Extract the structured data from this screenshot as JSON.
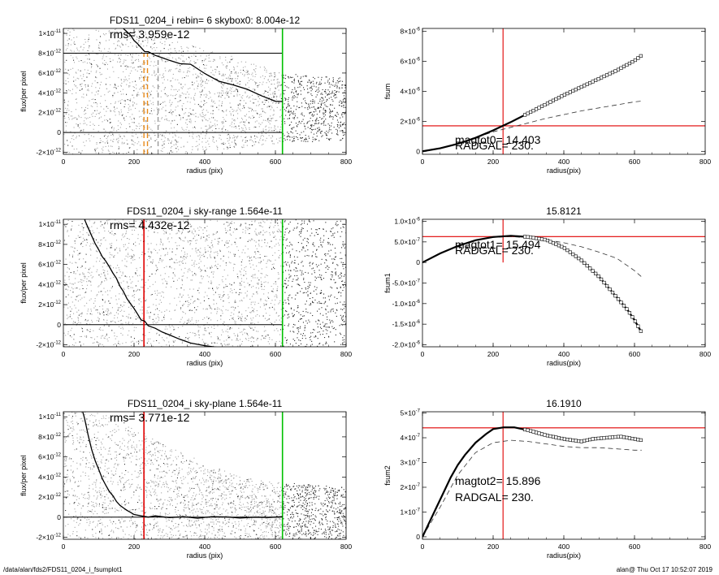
{
  "footer": {
    "path": "/data/alan/fds2/FDS11_0204_i_fsumplot1",
    "stamp": "alan@  Thu Oct 17 10:52:07 2019"
  },
  "colors": {
    "grey_points": "#9a9a9a",
    "red_line": "#e00000",
    "green_line": "#00c000",
    "orange_dash": "#e88a1a",
    "black": "#000000"
  },
  "chart_data": [
    {
      "id": "left-top",
      "type": "scatter",
      "title": "FDS11_0204_i rebin= 6    skybox0:  8.004e-12",
      "annotation": "rms= 3.959e-12",
      "xlabel": "radius (pix)",
      "ylabel": "flux/per pixel",
      "xlim": [
        0,
        800
      ],
      "ylim": [
        -2.2e-12,
        1.05e-11
      ],
      "xticks": [
        {
          "v": 0,
          "t": "0"
        },
        {
          "v": 200,
          "t": "200"
        },
        {
          "v": 400,
          "t": "400"
        },
        {
          "v": 600,
          "t": "600"
        },
        {
          "v": 800,
          "t": "800"
        }
      ],
      "yticks": [
        {
          "v": -2e-12,
          "t": "-2×10",
          "e": "-12"
        },
        {
          "v": 0,
          "t": "0"
        },
        {
          "v": 2e-12,
          "t": "2×10",
          "e": "-12"
        },
        {
          "v": 4e-12,
          "t": "4×10",
          "e": "-12"
        },
        {
          "v": 6e-12,
          "t": "6×10",
          "e": "-12"
        },
        {
          "v": 8e-12,
          "t": "8×10",
          "e": "-12"
        },
        {
          "v": 1e-11,
          "t": "1×10",
          "e": "-11"
        }
      ],
      "hlines": [
        {
          "y": 8.004e-12,
          "color": "black"
        },
        {
          "y": 0,
          "color": "black"
        }
      ],
      "vlines": [
        {
          "x": 620,
          "color": "green"
        }
      ],
      "vdash": [
        {
          "x": 228,
          "color": "orange",
          "y0": -2.2e-12,
          "y1": 8e-12
        },
        {
          "x": 238,
          "color": "orange",
          "y0": -2.2e-12,
          "y1": 8e-12
        },
        {
          "x": 268,
          "color": "grey",
          "y0": -2.2e-12,
          "y1": 7.8e-12
        }
      ],
      "profile": {
        "x": [
          170,
          190,
          200,
          210,
          220,
          230,
          240,
          260,
          280,
          300,
          330,
          360,
          400,
          440,
          480,
          520,
          560,
          600,
          620
        ],
        "y": [
          1.05e-11,
          9.8e-12,
          9.3e-12,
          8.9e-12,
          8.5e-12,
          8.2e-12,
          8.1e-12,
          7.8e-12,
          7.5e-12,
          7.3e-12,
          6.9e-12,
          6.9e-12,
          6e-12,
          5.2e-12,
          4.8e-12,
          4.3e-12,
          3.7e-12,
          3.1e-12,
          3.1e-12
        ]
      },
      "cloud": {
        "mode": "band",
        "top": [
          [
            0,
            1.2e-11
          ],
          [
            200,
            1.05e-11
          ],
          [
            300,
            9.5e-12
          ],
          [
            400,
            8.5e-12
          ],
          [
            500,
            7.5e-12
          ],
          [
            620,
            6e-12
          ],
          [
            800,
            5.5e-12
          ]
        ],
        "bottom": [
          [
            0,
            -2.2e-12
          ],
          [
            300,
            -2.2e-12
          ],
          [
            500,
            -1.5e-12
          ],
          [
            620,
            -1e-12
          ],
          [
            800,
            -8e-13
          ]
        ]
      }
    },
    {
      "id": "left-mid",
      "type": "scatter",
      "title": "FDS11_0204_i sky-range  1.564e-11",
      "annotation": "rms= 4.432e-12",
      "xlabel": "radius (pix)",
      "ylabel": "flux/per pixel",
      "xlim": [
        0,
        800
      ],
      "ylim": [
        -2.2e-12,
        1.05e-11
      ],
      "xticks": [
        {
          "v": 0,
          "t": "0"
        },
        {
          "v": 200,
          "t": "200"
        },
        {
          "v": 400,
          "t": "400"
        },
        {
          "v": 600,
          "t": "600"
        },
        {
          "v": 800,
          "t": "800"
        }
      ],
      "yticks": [
        {
          "v": -2e-12,
          "t": "-2×10",
          "e": "-12"
        },
        {
          "v": 0,
          "t": "0"
        },
        {
          "v": 2e-12,
          "t": "2×10",
          "e": "-12"
        },
        {
          "v": 4e-12,
          "t": "4×10",
          "e": "-12"
        },
        {
          "v": 6e-12,
          "t": "6×10",
          "e": "-12"
        },
        {
          "v": 8e-12,
          "t": "8×10",
          "e": "-12"
        },
        {
          "v": 1e-11,
          "t": "1×10",
          "e": "-11"
        }
      ],
      "hlines": [
        {
          "y": 0,
          "color": "black"
        }
      ],
      "vlines": [
        {
          "x": 228,
          "color": "red"
        },
        {
          "x": 620,
          "color": "green"
        }
      ],
      "vdash": [],
      "profile": {
        "x": [
          60,
          70,
          80,
          90,
          100,
          110,
          120,
          130,
          140,
          150,
          160,
          170,
          180,
          190,
          200,
          210,
          220,
          230,
          240,
          260,
          280,
          300,
          330,
          360,
          400,
          440
        ],
        "y": [
          1.05e-11,
          9.6e-12,
          8.9e-12,
          8.1e-12,
          7.5e-12,
          6.8e-12,
          6.3e-12,
          5.8e-12,
          5.1e-12,
          4.6e-12,
          3.9e-12,
          3.3e-12,
          2.6e-12,
          2.1e-12,
          1.6e-12,
          1e-12,
          5e-13,
          3e-13,
          -1e-13,
          -4e-13,
          -7e-13,
          -1e-12,
          -1.4e-12,
          -1.8e-12,
          -2.1e-12,
          -2.3e-12
        ]
      },
      "cloud": {
        "mode": "full"
      }
    },
    {
      "id": "left-bot",
      "type": "scatter",
      "title": "FDS11_0204_i sky-plane  1.564e-11",
      "annotation": "rms= 3.771e-12",
      "xlabel": "radius (pix)",
      "ylabel": "flux/per pixel",
      "xlim": [
        0,
        800
      ],
      "ylim": [
        -2.2e-12,
        1.05e-11
      ],
      "xticks": [
        {
          "v": 0,
          "t": "0"
        },
        {
          "v": 200,
          "t": "200"
        },
        {
          "v": 400,
          "t": "400"
        },
        {
          "v": 600,
          "t": "600"
        },
        {
          "v": 800,
          "t": "800"
        }
      ],
      "yticks": [
        {
          "v": -2e-12,
          "t": "-2×10",
          "e": "-12"
        },
        {
          "v": 0,
          "t": "0"
        },
        {
          "v": 2e-12,
          "t": "2×10",
          "e": "-12"
        },
        {
          "v": 4e-12,
          "t": "4×10",
          "e": "-12"
        },
        {
          "v": 6e-12,
          "t": "6×10",
          "e": "-12"
        },
        {
          "v": 8e-12,
          "t": "8×10",
          "e": "-12"
        },
        {
          "v": 1e-11,
          "t": "1×10",
          "e": "-11"
        }
      ],
      "hlines": [
        {
          "y": 0,
          "color": "black"
        }
      ],
      "vlines": [
        {
          "x": 228,
          "color": "red"
        },
        {
          "x": 620,
          "color": "green"
        }
      ],
      "vdash": [],
      "profile": {
        "x": [
          55,
          60,
          70,
          80,
          90,
          100,
          110,
          120,
          130,
          140,
          150,
          160,
          170,
          180,
          190,
          200,
          220,
          240,
          260,
          300,
          340,
          380,
          420,
          460,
          500,
          540,
          580,
          620
        ],
        "y": [
          1.05e-11,
          9.8e-12,
          8.2e-12,
          6.8e-12,
          5.6e-12,
          4.7e-12,
          3.9e-12,
          3.2e-12,
          2.6e-12,
          2.1e-12,
          1.6e-12,
          1.2e-12,
          9e-13,
          7e-13,
          5e-13,
          3e-13,
          1.5e-13,
          5e-14,
          1e-13,
          -5e-14,
          0,
          -5e-14,
          5e-14,
          0,
          -5e-14,
          0,
          -5e-14,
          0
        ]
      },
      "cloud": {
        "mode": "band",
        "top": [
          [
            0,
            1.2e-11
          ],
          [
            200,
            9e-12
          ],
          [
            300,
            7e-12
          ],
          [
            400,
            5.5e-12
          ],
          [
            500,
            4e-12
          ],
          [
            620,
            3.5e-12
          ],
          [
            800,
            3e-12
          ]
        ],
        "bottom": [
          [
            0,
            -2.2e-12
          ],
          [
            800,
            -2.2e-12
          ]
        ]
      }
    },
    {
      "id": "right-top",
      "type": "line",
      "title": "",
      "labels": [
        "magtot0=  14.403",
        "RADGAL=    230."
      ],
      "xlabel": "radius(pix)",
      "ylabel": "fsum",
      "xlim": [
        0,
        800
      ],
      "ylim": [
        -2e-07,
        8.2e-06
      ],
      "xticks": [
        {
          "v": 0,
          "t": "0"
        },
        {
          "v": 200,
          "t": "200"
        },
        {
          "v": 400,
          "t": "400"
        },
        {
          "v": 600,
          "t": "600"
        },
        {
          "v": 800,
          "t": "800"
        }
      ],
      "yticks": [
        {
          "v": 0,
          "t": "0"
        },
        {
          "v": 2e-06,
          "t": "2×10",
          "e": "-6"
        },
        {
          "v": 4e-06,
          "t": "4×10",
          "e": "-6"
        },
        {
          "v": 6e-06,
          "t": "6×10",
          "e": "-6"
        },
        {
          "v": 8e-06,
          "t": "8×10",
          "e": "-6"
        }
      ],
      "hline": 1.7e-06,
      "vline": 228,
      "series": {
        "x": [
          0,
          50,
          100,
          150,
          200,
          250,
          300,
          350,
          400,
          450,
          500,
          550,
          600,
          620
        ],
        "y": [
          0,
          2e-07,
          5e-07,
          9e-07,
          1.4e-06,
          1.95e-06,
          2.55e-06,
          3.15e-06,
          3.75e-06,
          4.3e-06,
          4.85e-06,
          5.4e-06,
          6.05e-06,
          6.4e-06
        ]
      },
      "dashed": {
        "x": [
          0,
          50,
          100,
          150,
          200,
          250,
          300,
          350,
          400,
          450,
          500,
          550,
          600,
          620
        ],
        "y": [
          0,
          2e-07,
          5e-07,
          9e-07,
          1.3e-06,
          1.6e-06,
          1.9e-06,
          2.2e-06,
          2.45e-06,
          2.7e-06,
          2.9e-06,
          3.1e-06,
          3.3e-06,
          3.35e-06
        ]
      }
    },
    {
      "id": "right-mid",
      "type": "line",
      "title": "15.8121",
      "labels": [
        "magtot1=  15.494",
        "RADGAL=    230."
      ],
      "xlabel": "radius(pix)",
      "ylabel": "fsum1",
      "xlim": [
        0,
        800
      ],
      "ylim": [
        -2.05e-06,
        1.05e-06
      ],
      "xticks": [
        {
          "v": 0,
          "t": "0"
        },
        {
          "v": 200,
          "t": "200"
        },
        {
          "v": 400,
          "t": "400"
        },
        {
          "v": 600,
          "t": "600"
        },
        {
          "v": 800,
          "t": "800"
        }
      ],
      "yticks": [
        {
          "v": -2e-06,
          "t": "-2.0×10",
          "e": "-6"
        },
        {
          "v": -1.5e-06,
          "t": "-1.5×10",
          "e": "-6"
        },
        {
          "v": -1e-06,
          "t": "-1.0×10",
          "e": "-6"
        },
        {
          "v": -5e-07,
          "t": "-5.0×10",
          "e": "-7"
        },
        {
          "v": 0,
          "t": "0"
        },
        {
          "v": 5e-07,
          "t": "5.0×10",
          "e": "-7"
        },
        {
          "v": 1e-06,
          "t": "1.0×10",
          "e": "-6"
        }
      ],
      "hline": 6.3e-07,
      "vline": 228,
      "vline_range": [
        0,
        1.05e-06
      ],
      "series": {
        "x": [
          0,
          50,
          100,
          150,
          200,
          250,
          300,
          350,
          400,
          450,
          500,
          550,
          580,
          600,
          620
        ],
        "y": [
          0,
          2.2e-07,
          4e-07,
          5.4e-07,
          6.2e-07,
          6.5e-07,
          6.2e-07,
          5.5e-07,
          3.6e-07,
          5e-08,
          -3.5e-07,
          -8.5e-07,
          -1.15e-06,
          -1.4e-06,
          -1.7e-06
        ]
      },
      "dashed": {
        "x": [
          0,
          50,
          100,
          150,
          200,
          250,
          300,
          350,
          400,
          450,
          500,
          550,
          600,
          620
        ],
        "y": [
          0,
          2.2e-07,
          4e-07,
          5.4e-07,
          6.1e-07,
          6.3e-07,
          6e-07,
          5.5e-07,
          4.8e-07,
          3.8e-07,
          2.5e-07,
          1e-07,
          -2e-07,
          -3.5e-07
        ]
      }
    },
    {
      "id": "right-bot",
      "type": "line",
      "title": "16.1910",
      "labels": [
        "magtot2=  15.896",
        "RADGAL=    230."
      ],
      "xlabel": "radius(pix)",
      "ylabel": "fsum2",
      "xlim": [
        0,
        800
      ],
      "ylim": [
        -1e-08,
        5.05e-07
      ],
      "xticks": [
        {
          "v": 0,
          "t": "0"
        },
        {
          "v": 200,
          "t": "200"
        },
        {
          "v": 400,
          "t": "400"
        },
        {
          "v": 600,
          "t": "600"
        },
        {
          "v": 800,
          "t": "800"
        }
      ],
      "yticks": [
        {
          "v": 0,
          "t": "0"
        },
        {
          "v": 1e-07,
          "t": "1×10",
          "e": "-7"
        },
        {
          "v": 2e-07,
          "t": "2×10",
          "e": "-7"
        },
        {
          "v": 3e-07,
          "t": "3×10",
          "e": "-7"
        },
        {
          "v": 4e-07,
          "t": "4×10",
          "e": "-7"
        },
        {
          "v": 5e-07,
          "t": "5×10",
          "e": "-7"
        }
      ],
      "hline": 4.4e-07,
      "vline": 228,
      "series": {
        "x": [
          0,
          20,
          40,
          60,
          80,
          100,
          120,
          150,
          180,
          200,
          230,
          260,
          300,
          350,
          400,
          450,
          480,
          520,
          560,
          600,
          620
        ],
        "y": [
          0,
          6e-08,
          1.2e-07,
          1.8e-07,
          2.4e-07,
          2.9e-07,
          3.3e-07,
          3.8e-07,
          4.15e-07,
          4.35e-07,
          4.42e-07,
          4.42e-07,
          4.3e-07,
          4.1e-07,
          3.95e-07,
          3.85e-07,
          3.95e-07,
          4e-07,
          4.05e-07,
          3.95e-07,
          3.9e-07
        ]
      },
      "dashed": {
        "x": [
          0,
          50,
          100,
          150,
          200,
          250,
          300,
          350,
          400,
          450,
          500,
          550,
          600,
          620
        ],
        "y": [
          0,
          1.2e-07,
          2.5e-07,
          3.4e-07,
          3.8e-07,
          3.9e-07,
          3.85e-07,
          3.75e-07,
          3.65e-07,
          3.6e-07,
          3.6e-07,
          3.55e-07,
          3.5e-07,
          3.5e-07
        ]
      }
    }
  ]
}
